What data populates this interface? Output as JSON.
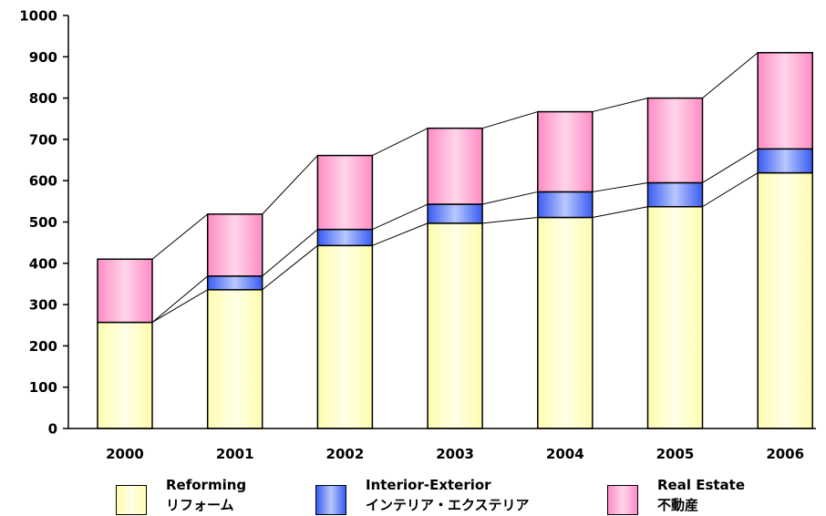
{
  "colors": {
    "reforming": "#ffffc0",
    "interior_exterior": "#6b8af5",
    "real_estate": "#ff99cc",
    "axis": "#000000"
  },
  "legend": [
    {
      "en": "Reforming",
      "ja": "リフォーム",
      "swatch": "reforming"
    },
    {
      "en": "Interior-Exterior",
      "ja": "インテリア・エクステリア",
      "swatch": "interior_exterior"
    },
    {
      "en": "Real Estate",
      "ja": "不動産",
      "swatch": "real_estate"
    }
  ],
  "chart_data": {
    "type": "bar",
    "stacked": true,
    "categories": [
      "2000",
      "2001",
      "2002",
      "2003",
      "2004",
      "2005",
      "2006"
    ],
    "series": [
      {
        "name": "Reforming リフォーム",
        "color_key": "reforming",
        "values": [
          257,
          336,
          443,
          497,
          511,
          537,
          619
        ]
      },
      {
        "name": "Interior-Exterior インテリア・エクステリア",
        "color_key": "interior_exterior",
        "values": [
          0,
          33,
          39,
          46,
          62,
          58,
          58
        ]
      },
      {
        "name": "Real Estate 不動産",
        "color_key": "real_estate",
        "values": [
          153,
          150,
          179,
          184,
          194,
          205,
          233
        ]
      }
    ],
    "totals": [
      410,
      519,
      661,
      727,
      767,
      800,
      910
    ],
    "ylim": [
      0,
      1000
    ],
    "yticks": [
      "0",
      "100",
      "200",
      "300",
      "400",
      "500",
      "600",
      "700",
      "800",
      "900",
      "1000"
    ],
    "xlabel": "",
    "ylabel": "",
    "title": "",
    "series_connector_lines": true,
    "grid": false,
    "legend_position": "bottom"
  }
}
